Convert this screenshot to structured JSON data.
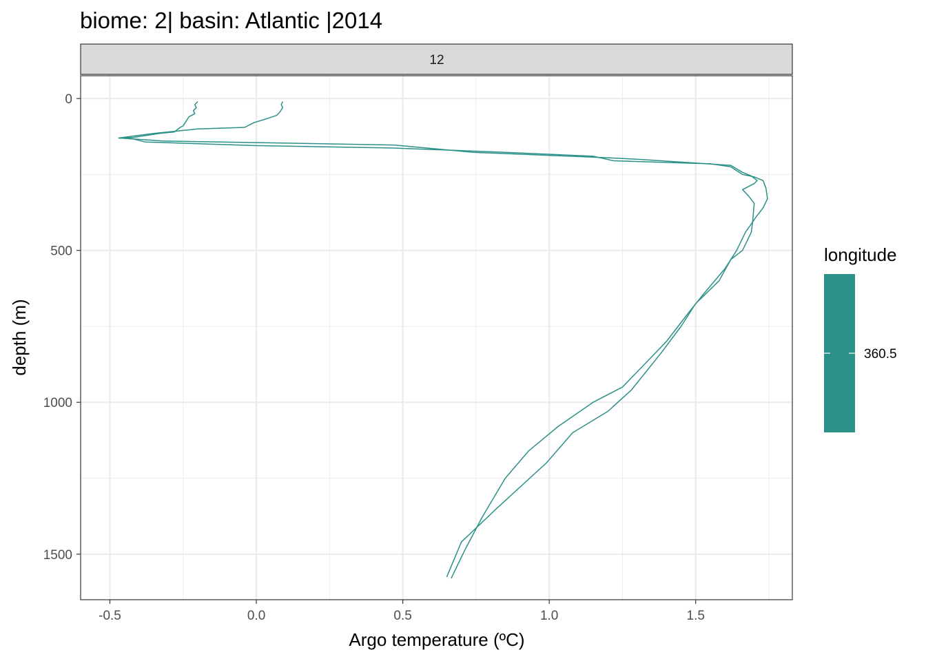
{
  "chart_data": {
    "type": "line",
    "title": "biome: 2| basin: Atlantic |2014",
    "facet_label": "12",
    "xlabel": "Argo temperature (ºC)",
    "ylabel": "depth (m)",
    "xlim": [
      -0.6,
      1.83
    ],
    "ylim": [
      1650,
      -75
    ],
    "y_reversed": true,
    "x_ticks": [
      -0.5,
      0.0,
      0.5,
      1.0,
      1.5
    ],
    "x_tick_labels": [
      "-0.5",
      "0.0",
      "0.5",
      "1.0",
      "1.5"
    ],
    "y_ticks": [
      0,
      500,
      1000,
      1500
    ],
    "y_tick_labels": [
      "0",
      "500",
      "1000",
      "1500"
    ],
    "grid": true,
    "line_color": "#2a9088",
    "legend": {
      "title": "longitude",
      "label": "360.5",
      "color": "#2a9088",
      "placement": "right"
    },
    "series": [
      {
        "points": [
          [
            -0.2,
            10
          ],
          [
            -0.21,
            20
          ],
          [
            -0.205,
            30
          ],
          [
            -0.215,
            40
          ],
          [
            -0.21,
            50
          ],
          [
            -0.23,
            60
          ],
          [
            -0.24,
            75
          ],
          [
            -0.25,
            90
          ],
          [
            -0.26,
            95
          ],
          [
            -0.28,
            110
          ],
          [
            -0.33,
            115
          ],
          [
            -0.42,
            128
          ],
          [
            -0.47,
            130
          ],
          [
            -0.42,
            133
          ],
          [
            -0.38,
            143
          ],
          [
            0.0,
            155
          ],
          [
            0.47,
            163
          ],
          [
            0.85,
            177
          ],
          [
            1.15,
            190
          ],
          [
            1.22,
            205
          ],
          [
            1.55,
            215
          ],
          [
            1.62,
            225
          ],
          [
            1.66,
            250
          ],
          [
            1.7,
            258
          ],
          [
            1.73,
            270
          ],
          [
            1.74,
            295
          ],
          [
            1.745,
            330
          ],
          [
            1.73,
            360
          ],
          [
            1.71,
            385
          ],
          [
            1.67,
            440
          ],
          [
            1.64,
            500
          ],
          [
            1.6,
            560
          ],
          [
            1.53,
            640
          ],
          [
            1.48,
            700
          ],
          [
            1.4,
            800
          ],
          [
            1.35,
            850
          ],
          [
            1.3,
            900
          ],
          [
            1.25,
            950
          ],
          [
            1.15,
            1000
          ],
          [
            1.03,
            1080
          ],
          [
            0.93,
            1160
          ],
          [
            0.85,
            1250
          ],
          [
            0.77,
            1380
          ],
          [
            0.71,
            1490
          ],
          [
            0.665,
            1580
          ]
        ]
      },
      {
        "points": [
          [
            0.09,
            10
          ],
          [
            0.085,
            20
          ],
          [
            0.09,
            30
          ],
          [
            0.08,
            45
          ],
          [
            0.07,
            55
          ],
          [
            0.04,
            65
          ],
          [
            -0.01,
            80
          ],
          [
            -0.04,
            95
          ],
          [
            -0.2,
            100
          ],
          [
            -0.35,
            115
          ],
          [
            -0.47,
            130
          ],
          [
            -0.32,
            140
          ],
          [
            0.0,
            145
          ],
          [
            0.47,
            153
          ],
          [
            0.55,
            160
          ],
          [
            0.74,
            177
          ],
          [
            1.2,
            195
          ],
          [
            1.3,
            200
          ],
          [
            1.62,
            220
          ],
          [
            1.66,
            243
          ],
          [
            1.69,
            255
          ],
          [
            1.71,
            270
          ],
          [
            1.7,
            280
          ],
          [
            1.66,
            300
          ],
          [
            1.68,
            320
          ],
          [
            1.7,
            345
          ],
          [
            1.695,
            400
          ],
          [
            1.69,
            440
          ],
          [
            1.66,
            500
          ],
          [
            1.62,
            530
          ],
          [
            1.58,
            600
          ],
          [
            1.5,
            675
          ],
          [
            1.45,
            750
          ],
          [
            1.38,
            840
          ],
          [
            1.28,
            960
          ],
          [
            1.2,
            1030
          ],
          [
            1.08,
            1100
          ],
          [
            0.99,
            1200
          ],
          [
            0.82,
            1350
          ],
          [
            0.7,
            1460
          ],
          [
            0.65,
            1575
          ]
        ]
      }
    ]
  }
}
